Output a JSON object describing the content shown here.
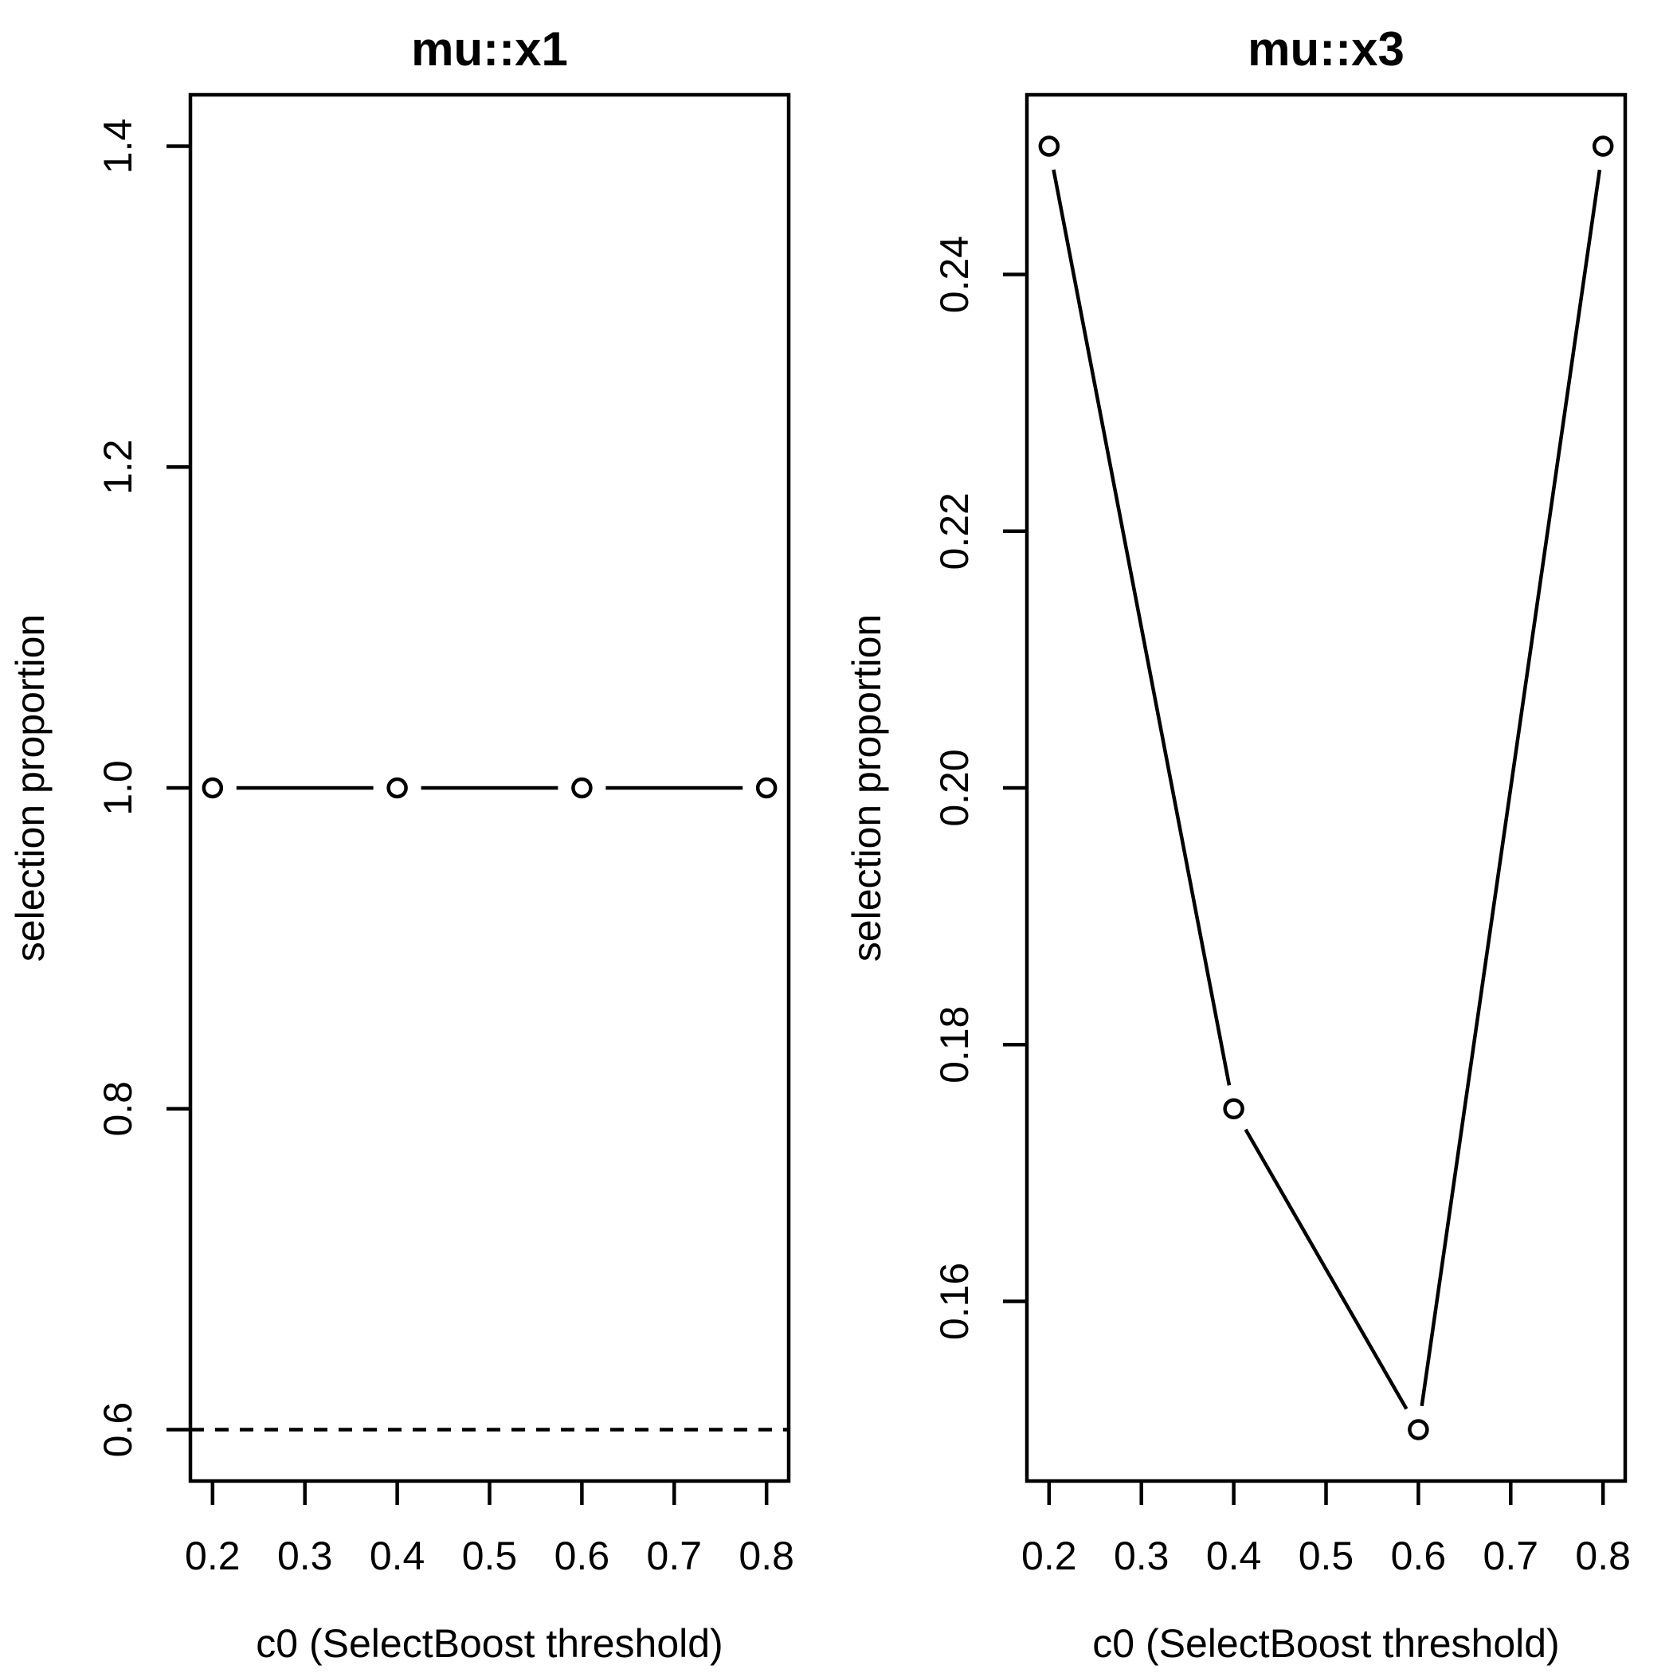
{
  "figure_background": "#ffffff",
  "foreground_color": "#000000",
  "chart_data": [
    {
      "type": "line",
      "title": "mu::x1",
      "xlabel": "c0 (SelectBoost threshold)",
      "ylabel": "selection proportion",
      "x": [
        0.2,
        0.4,
        0.6,
        0.8
      ],
      "y": [
        1.0,
        1.0,
        1.0,
        1.0
      ],
      "xlim": [
        0.2,
        0.8
      ],
      "ylim": [
        0.6,
        1.4
      ],
      "xtick_values": [
        0.2,
        0.3,
        0.4,
        0.5,
        0.6,
        0.7,
        0.8
      ],
      "xtick_labels": [
        "0.2",
        "0.3",
        "0.4",
        "0.5",
        "0.6",
        "0.7",
        "0.8"
      ],
      "ytick_values": [
        0.6,
        0.8,
        1.0,
        1.2,
        1.4
      ],
      "ytick_labels": [
        "0.6",
        "0.8",
        "1.0",
        "1.2",
        "1.4"
      ],
      "dashed_hline": 0.6,
      "marker": "open-circle",
      "line_style": "solid-with-point-gaps",
      "color": "#000000",
      "grid": false,
      "legend": null
    },
    {
      "type": "line",
      "title": "mu::x3",
      "xlabel": "c0 (SelectBoost threshold)",
      "ylabel": "selection proportion",
      "x": [
        0.2,
        0.4,
        0.6,
        0.8
      ],
      "y": [
        0.25,
        0.175,
        0.15,
        0.25
      ],
      "xlim": [
        0.2,
        0.8
      ],
      "ylim": [
        0.15,
        0.25
      ],
      "xtick_values": [
        0.2,
        0.3,
        0.4,
        0.5,
        0.6,
        0.7,
        0.8
      ],
      "xtick_labels": [
        "0.2",
        "0.3",
        "0.4",
        "0.5",
        "0.6",
        "0.7",
        "0.8"
      ],
      "ytick_values": [
        0.16,
        0.18,
        0.2,
        0.22,
        0.24
      ],
      "ytick_labels": [
        "0.16",
        "0.18",
        "0.20",
        "0.22",
        "0.24"
      ],
      "dashed_hline": null,
      "marker": "open-circle",
      "line_style": "solid-with-point-gaps",
      "color": "#000000",
      "grid": false,
      "legend": null
    }
  ]
}
